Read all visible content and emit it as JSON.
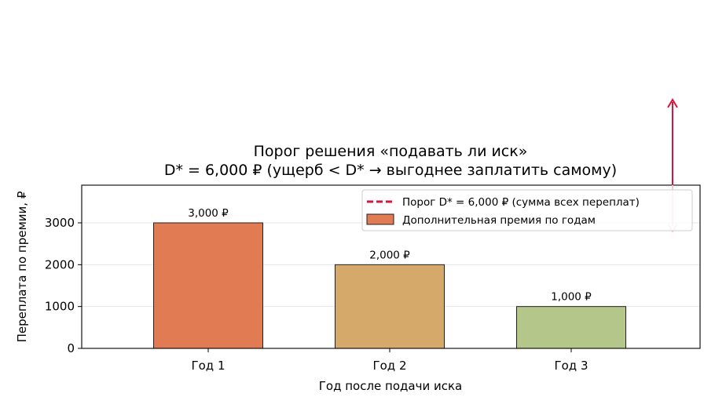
{
  "chart_data": {
    "type": "bar",
    "title": "Порог решения «подавать ли иск»",
    "subtitle": "D* = 6,000 ₽  (ущерб < D* → выгоднее заплатить самому)",
    "xlabel": "Год после подачи иска",
    "ylabel": "Переплата по премии, ₽",
    "categories": [
      "Год 1",
      "Год 2",
      "Год 3"
    ],
    "values": [
      3000,
      2000,
      1000
    ],
    "data_labels": [
      "3,000 ₽",
      "2,000 ₽",
      "1,000 ₽"
    ],
    "bar_colors": [
      "#e07b54",
      "#d4a96a",
      "#b5c68a"
    ],
    "ylim": [
      0,
      3900
    ],
    "yticks": [
      0,
      1000,
      2000,
      3000
    ],
    "threshold": {
      "value": 6000,
      "color": "#d6143c"
    },
    "grid": "horizontal",
    "legend": {
      "position": "top-right",
      "entries": [
        {
          "label": "Порог D* = 6,000 ₽ (сумма всех переплат)",
          "style": "dashed-line",
          "color": "#d6143c"
        },
        {
          "label": "Дополнительная премия по годам",
          "style": "patch",
          "color": "#e07b54"
        }
      ]
    }
  }
}
